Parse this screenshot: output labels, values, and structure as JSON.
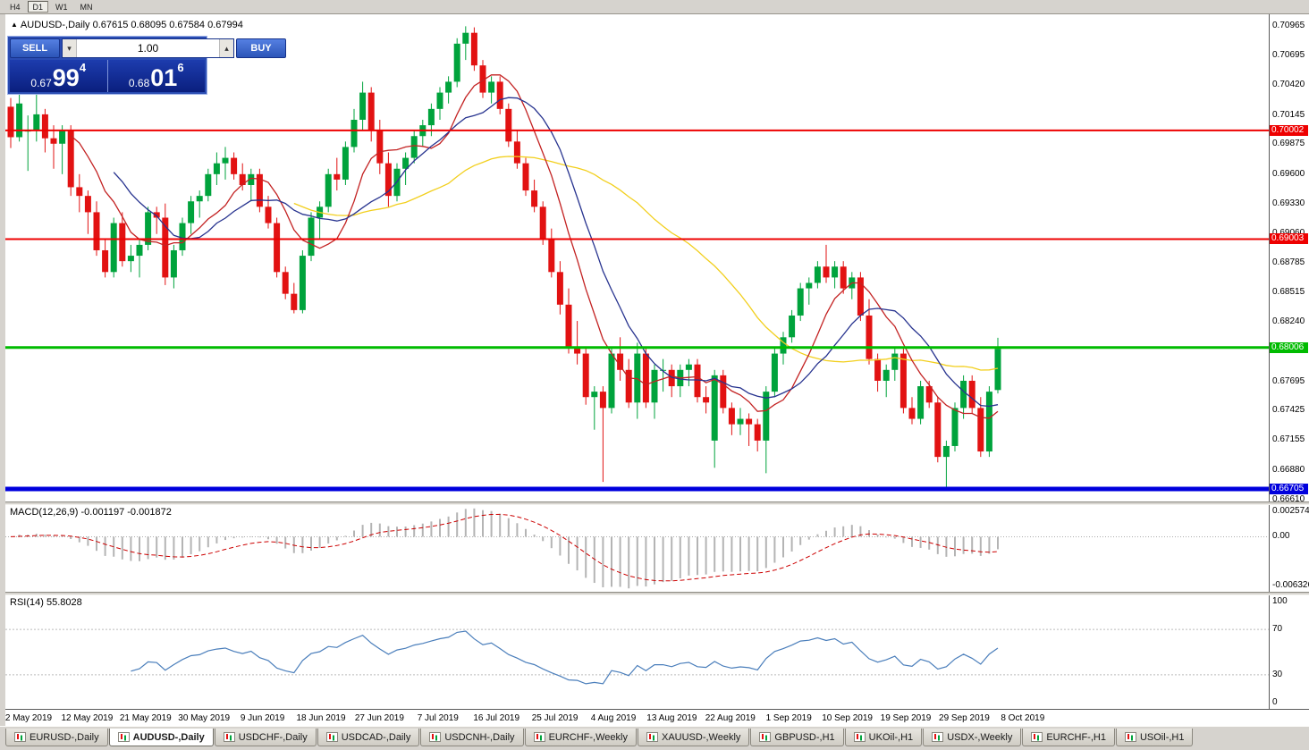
{
  "toolbar": {
    "periods": [
      {
        "label": "H4",
        "active": false
      },
      {
        "label": "D1",
        "active": true
      },
      {
        "label": "W1",
        "active": false
      },
      {
        "label": "MN",
        "active": false
      }
    ]
  },
  "chart_header": {
    "collapse_icon": "▲",
    "title": "AUDUSD-,Daily",
    "ohlc": "0.67615 0.68095 0.67584 0.67994"
  },
  "trade_panel": {
    "sell_label": "SELL",
    "buy_label": "BUY",
    "volume": "1.00",
    "spin_down": "▾",
    "spin_up": "▴",
    "bid_prefix": "0.67",
    "bid_big": "99",
    "bid_sup": "4",
    "ask_prefix": "0.68",
    "ask_big": "01",
    "ask_sup": "6"
  },
  "chart_data": {
    "type": "candlestick",
    "symbol": "AUDUSD-",
    "timeframe": "Daily",
    "price_range": [
      0.6659,
      0.7107
    ],
    "axis_ticks": [
      "0.70965",
      "0.70695",
      "0.70420",
      "0.70145",
      "0.69875",
      "0.69600",
      "0.69330",
      "0.69060",
      "0.68785",
      "0.68515",
      "0.68240",
      "0.67970",
      "0.67695",
      "0.67425",
      "0.67155",
      "0.66880",
      "0.66610"
    ],
    "hlines": [
      {
        "price": 0.70002,
        "label": "0.70002",
        "color": "#ee0000",
        "width": 2
      },
      {
        "price": 0.69003,
        "label": "0.69003",
        "color": "#ee0000",
        "width": 2
      },
      {
        "price": 0.68006,
        "label": "0.68006",
        "color": "#00bb00",
        "width": 3
      },
      {
        "price": 0.66705,
        "label": "0.66705",
        "color": "#0000dd",
        "width": 5
      }
    ],
    "colors": {
      "bull": "#00a33c",
      "bear": "#e21212",
      "ma_fast": "#c32222",
      "ma_mid": "#27338f",
      "ma_slow": "#f2cf1d"
    },
    "ma_periods": [
      8,
      13,
      34
    ],
    "candles": [
      [
        0.7022,
        0.703,
        0.6984,
        0.6994
      ],
      [
        0.6994,
        0.7035,
        0.699,
        0.7025
      ],
      [
        0.7,
        0.7014,
        0.6963,
        0.7
      ],
      [
        0.7,
        0.7048,
        0.699,
        0.7015
      ],
      [
        0.7015,
        0.702,
        0.698,
        0.6993
      ],
      [
        0.6993,
        0.7005,
        0.6965,
        0.6988
      ],
      [
        0.6988,
        0.7005,
        0.696,
        0.7
      ],
      [
        0.7,
        0.7005,
        0.694,
        0.6948
      ],
      [
        0.6948,
        0.696,
        0.6925,
        0.694
      ],
      [
        0.694,
        0.6945,
        0.6905,
        0.6925
      ],
      [
        0.6925,
        0.6935,
        0.6885,
        0.689
      ],
      [
        0.689,
        0.69,
        0.6865,
        0.687
      ],
      [
        0.687,
        0.692,
        0.6865,
        0.6915
      ],
      [
        0.6915,
        0.6925,
        0.6875,
        0.688
      ],
      [
        0.688,
        0.6895,
        0.687,
        0.6885
      ],
      [
        0.6885,
        0.69,
        0.6865,
        0.6895
      ],
      [
        0.6895,
        0.693,
        0.689,
        0.6925
      ],
      [
        0.6925,
        0.693,
        0.6905,
        0.692
      ],
      [
        0.692,
        0.6933,
        0.6858,
        0.6865
      ],
      [
        0.6865,
        0.6895,
        0.6855,
        0.689
      ],
      [
        0.689,
        0.692,
        0.6885,
        0.6915
      ],
      [
        0.6915,
        0.694,
        0.6905,
        0.6935
      ],
      [
        0.6935,
        0.6945,
        0.692,
        0.694
      ],
      [
        0.694,
        0.6965,
        0.6935,
        0.696
      ],
      [
        0.696,
        0.698,
        0.695,
        0.697
      ],
      [
        0.697,
        0.6985,
        0.6955,
        0.6975
      ],
      [
        0.6975,
        0.698,
        0.6955,
        0.696
      ],
      [
        0.696,
        0.697,
        0.6945,
        0.695
      ],
      [
        0.695,
        0.6965,
        0.6935,
        0.696
      ],
      [
        0.696,
        0.6965,
        0.6925,
        0.693
      ],
      [
        0.693,
        0.694,
        0.691,
        0.6915
      ],
      [
        0.6915,
        0.692,
        0.6865,
        0.687
      ],
      [
        0.687,
        0.6875,
        0.6845,
        0.685
      ],
      [
        0.685,
        0.686,
        0.6832,
        0.6835
      ],
      [
        0.6835,
        0.689,
        0.6832,
        0.6885
      ],
      [
        0.6885,
        0.6925,
        0.688,
        0.692
      ],
      [
        0.692,
        0.6935,
        0.69,
        0.693
      ],
      [
        0.693,
        0.6965,
        0.6925,
        0.696
      ],
      [
        0.696,
        0.6975,
        0.6945,
        0.6955
      ],
      [
        0.6955,
        0.699,
        0.695,
        0.6985
      ],
      [
        0.6985,
        0.702,
        0.698,
        0.701
      ],
      [
        0.701,
        0.7045,
        0.7,
        0.7035
      ],
      [
        0.7035,
        0.704,
        0.699,
        0.7
      ],
      [
        0.7,
        0.701,
        0.696,
        0.697
      ],
      [
        0.697,
        0.698,
        0.693,
        0.694
      ],
      [
        0.694,
        0.697,
        0.6935,
        0.6965
      ],
      [
        0.6965,
        0.698,
        0.695,
        0.6975
      ],
      [
        0.6975,
        0.7,
        0.697,
        0.6995
      ],
      [
        0.6995,
        0.701,
        0.6985,
        0.7005
      ],
      [
        0.7005,
        0.7025,
        0.6995,
        0.702
      ],
      [
        0.702,
        0.704,
        0.701,
        0.7035
      ],
      [
        0.7035,
        0.705,
        0.7025,
        0.7045
      ],
      [
        0.7045,
        0.7085,
        0.704,
        0.708
      ],
      [
        0.708,
        0.7096,
        0.7065,
        0.709
      ],
      [
        0.709,
        0.7095,
        0.7055,
        0.706
      ],
      [
        0.706,
        0.7065,
        0.703,
        0.7035
      ],
      [
        0.7035,
        0.705,
        0.7025,
        0.7045
      ],
      [
        0.7045,
        0.705,
        0.7015,
        0.702
      ],
      [
        0.702,
        0.7025,
        0.6985,
        0.699
      ],
      [
        0.699,
        0.7,
        0.6965,
        0.697
      ],
      [
        0.697,
        0.6975,
        0.694,
        0.6945
      ],
      [
        0.6945,
        0.6955,
        0.6925,
        0.693
      ],
      [
        0.693,
        0.6935,
        0.6895,
        0.69
      ],
      [
        0.69,
        0.691,
        0.6865,
        0.687
      ],
      [
        0.687,
        0.688,
        0.6831,
        0.684
      ],
      [
        0.684,
        0.6855,
        0.6795,
        0.68
      ],
      [
        0.68,
        0.6825,
        0.6785,
        0.6795
      ],
      [
        0.6795,
        0.68,
        0.6748,
        0.6755
      ],
      [
        0.6755,
        0.6765,
        0.6725,
        0.676
      ],
      [
        0.676,
        0.6765,
        0.6677,
        0.6745
      ],
      [
        0.6745,
        0.68,
        0.674,
        0.6795
      ],
      [
        0.6795,
        0.681,
        0.677,
        0.678
      ],
      [
        0.678,
        0.679,
        0.6745,
        0.675
      ],
      [
        0.675,
        0.6805,
        0.6735,
        0.6795
      ],
      [
        0.6795,
        0.68,
        0.6745,
        0.675
      ],
      [
        0.675,
        0.6785,
        0.6735,
        0.678
      ],
      [
        0.678,
        0.679,
        0.676,
        0.678
      ],
      [
        0.678,
        0.6785,
        0.6755,
        0.6765
      ],
      [
        0.6765,
        0.6785,
        0.6755,
        0.678
      ],
      [
        0.678,
        0.679,
        0.6765,
        0.6785
      ],
      [
        0.6785,
        0.679,
        0.675,
        0.6755
      ],
      [
        0.6755,
        0.6765,
        0.674,
        0.675
      ],
      [
        0.6715,
        0.678,
        0.669,
        0.6775
      ],
      [
        0.6775,
        0.678,
        0.674,
        0.6745
      ],
      [
        0.6745,
        0.675,
        0.672,
        0.673
      ],
      [
        0.673,
        0.6745,
        0.672,
        0.6735
      ],
      [
        0.6735,
        0.674,
        0.671,
        0.673
      ],
      [
        0.673,
        0.6735,
        0.6705,
        0.6715
      ],
      [
        0.6715,
        0.6765,
        0.6685,
        0.676
      ],
      [
        0.676,
        0.68,
        0.6755,
        0.6795
      ],
      [
        0.6795,
        0.6815,
        0.6785,
        0.681
      ],
      [
        0.681,
        0.6835,
        0.6805,
        0.683
      ],
      [
        0.683,
        0.686,
        0.6825,
        0.6855
      ],
      [
        0.6855,
        0.6865,
        0.684,
        0.686
      ],
      [
        0.686,
        0.688,
        0.6855,
        0.6875
      ],
      [
        0.6875,
        0.6895,
        0.686,
        0.6865
      ],
      [
        0.6865,
        0.688,
        0.6855,
        0.6875
      ],
      [
        0.6875,
        0.688,
        0.685,
        0.6855
      ],
      [
        0.6855,
        0.687,
        0.6845,
        0.6865
      ],
      [
        0.6865,
        0.687,
        0.6825,
        0.683
      ],
      [
        0.683,
        0.6845,
        0.6785,
        0.679
      ],
      [
        0.679,
        0.6795,
        0.676,
        0.677
      ],
      [
        0.677,
        0.6785,
        0.6755,
        0.678
      ],
      [
        0.678,
        0.68,
        0.677,
        0.6795
      ],
      [
        0.6795,
        0.68,
        0.674,
        0.6745
      ],
      [
        0.6745,
        0.6755,
        0.673,
        0.6735
      ],
      [
        0.6735,
        0.677,
        0.673,
        0.6765
      ],
      [
        0.6765,
        0.677,
        0.6745,
        0.675
      ],
      [
        0.675,
        0.6755,
        0.6695,
        0.67
      ],
      [
        0.67,
        0.6715,
        0.667,
        0.671
      ],
      [
        0.671,
        0.675,
        0.6705,
        0.6745
      ],
      [
        0.6745,
        0.6775,
        0.6735,
        0.677
      ],
      [
        0.677,
        0.6775,
        0.674,
        0.6745
      ],
      [
        0.6745,
        0.6755,
        0.67,
        0.6705
      ],
      [
        0.6705,
        0.6765,
        0.67,
        0.676
      ],
      [
        0.67615,
        0.68095,
        0.67584,
        0.67994
      ]
    ],
    "macd": {
      "label": "MACD(12,26,9)",
      "values": "-0.001197 -0.001872",
      "params": [
        12,
        26,
        9
      ],
      "axis_labels": [
        "0.002574",
        "0.00",
        "-0.006326"
      ]
    },
    "rsi": {
      "label": "RSI(14)",
      "value": "55.8028",
      "period": 14,
      "axis_labels": [
        "100",
        "70",
        "30",
        "0"
      ],
      "levels": [
        70,
        30
      ]
    },
    "x_labels": [
      "2 May 2019",
      "12 May 2019",
      "21 May 2019",
      "30 May 2019",
      "9 Jun 2019",
      "18 Jun 2019",
      "27 Jun 2019",
      "7 Jul 2019",
      "16 Jul 2019",
      "25 Jul 2019",
      "4 Aug 2019",
      "13 Aug 2019",
      "22 Aug 2019",
      "1 Sep 2019",
      "10 Sep 2019",
      "19 Sep 2019",
      "29 Sep 2019",
      "8 Oct 2019"
    ]
  },
  "tabs": [
    {
      "label": "EURUSD-,Daily",
      "active": false
    },
    {
      "label": "AUDUSD-,Daily",
      "active": true
    },
    {
      "label": "USDCHF-,Daily",
      "active": false
    },
    {
      "label": "USDCAD-,Daily",
      "active": false
    },
    {
      "label": "USDCNH-,Daily",
      "active": false
    },
    {
      "label": "EURCHF-,Weekly",
      "active": false
    },
    {
      "label": "XAUUSD-,Weekly",
      "active": false
    },
    {
      "label": "GBPUSD-,H1",
      "active": false
    },
    {
      "label": "UKOil-,H1",
      "active": false
    },
    {
      "label": "USDX-,Weekly",
      "active": false
    },
    {
      "label": "EURCHF-,H1",
      "active": false
    },
    {
      "label": "USOil-,H1",
      "active": false
    }
  ]
}
